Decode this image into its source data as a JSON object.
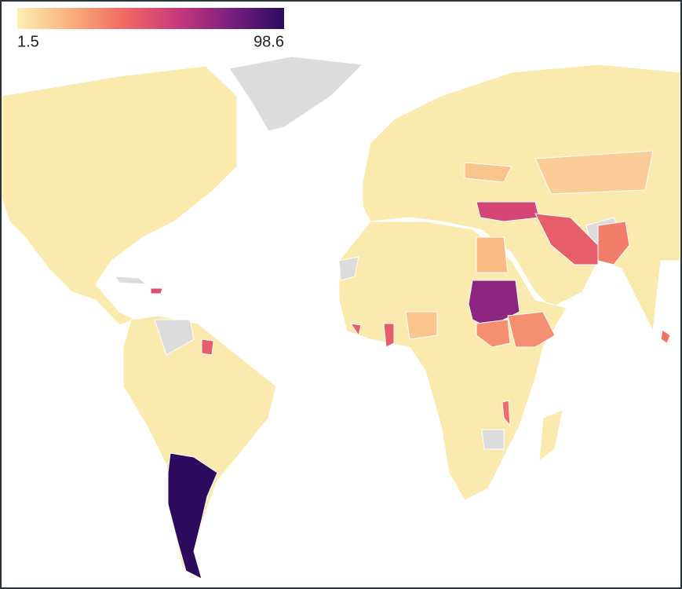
{
  "colorbar": {
    "min": 1.5,
    "max": 98.6,
    "colorscale": [
      "#fcf0b4",
      "#f9b07c",
      "#f06a63",
      "#c8397a",
      "#7a1f7e",
      "#2a0b5e"
    ]
  },
  "regions": {
    "values": [
      98.6,
      75,
      55,
      45,
      45,
      45,
      45,
      50,
      35,
      30,
      30,
      40,
      38,
      18,
      15,
      15,
      12
    ]
  }
}
